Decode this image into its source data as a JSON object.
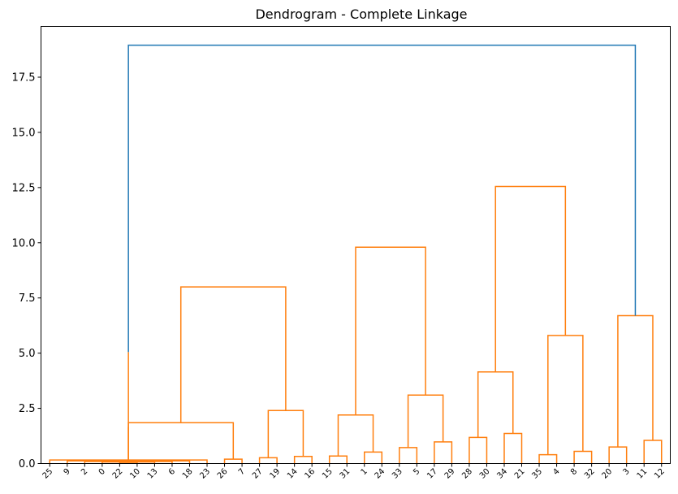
{
  "chart_data": {
    "type": "dendrogram",
    "title": "Dendrogram - Complete Linkage",
    "xlabel": "",
    "ylabel": "",
    "ylim": [
      0,
      19.8
    ],
    "yticks": [
      "0.0",
      "2.5",
      "5.0",
      "7.5",
      "10.0",
      "12.5",
      "15.0",
      "17.5"
    ],
    "ytick_values": [
      0,
      2.5,
      5,
      7.5,
      10,
      12.5,
      15,
      17.5
    ],
    "leaves": [
      "25",
      "9",
      "2",
      "0",
      "22",
      "10",
      "13",
      "6",
      "18",
      "23",
      "26",
      "7",
      "27",
      "19",
      "14",
      "16",
      "15",
      "31",
      "1",
      "24",
      "33",
      "5",
      "17",
      "29",
      "28",
      "30",
      "34",
      "21",
      "35",
      "4",
      "8",
      "32",
      "20",
      "3",
      "11",
      "12"
    ],
    "colors": {
      "above_threshold": "#1f77b4",
      "cluster": "#ff7f0e"
    },
    "links": [
      {
        "left": 4,
        "right": 5,
        "height": 0.05
      },
      {
        "left": 3,
        "right": 6,
        "height": 0.07
      },
      {
        "left": 2,
        "right": 7,
        "height": 0.09
      },
      {
        "left": 1,
        "right": 8,
        "height": 0.12
      },
      {
        "left": 0,
        "right": 9,
        "height": 0.16
      },
      {
        "left": 10,
        "right": 11,
        "height": 0.2
      },
      {
        "left": 12,
        "right": 13,
        "height": 0.26
      },
      {
        "left": 14,
        "right": 15,
        "height": 0.32
      },
      {
        "left": 16,
        "right": 17,
        "height": 0.34
      },
      {
        "left": 18,
        "right": 19,
        "height": 0.52
      },
      {
        "left": 20,
        "right": 21,
        "height": 0.72
      },
      {
        "left": 22,
        "right": 23,
        "height": 0.98
      },
      {
        "left": 24,
        "right": 25,
        "height": 1.18
      },
      {
        "left": 26,
        "right": 27,
        "height": 1.36
      },
      {
        "left": 28,
        "right": 29,
        "height": 0.4
      },
      {
        "left": 30,
        "right": 31,
        "height": 0.55
      },
      {
        "left": 32,
        "right": 33,
        "height": 0.75
      },
      {
        "left": 34,
        "right": 35,
        "height": 1.05
      },
      {
        "left": 36,
        "right": 37,
        "height": 1.55
      },
      {
        "left": 38,
        "right": 39,
        "height": 1.65
      },
      {
        "left": 40,
        "right": 41,
        "height": 1.85
      },
      {
        "left": 42,
        "right": 43,
        "height": 2.4
      },
      {
        "left": 44,
        "right": 45,
        "height": 2.2
      },
      {
        "left": 46,
        "right": 47,
        "height": 3.1
      },
      {
        "left": 48,
        "right": 49,
        "height": 4.15
      },
      {
        "left": 50,
        "right": 51,
        "height": 5.8
      },
      {
        "left": 52,
        "right": 53,
        "height": 6.7
      },
      {
        "left": 54,
        "right": 55,
        "height": 5.05
      },
      {
        "left": 56,
        "right": 57,
        "height": 8.0
      },
      {
        "left": 58,
        "right": 59,
        "height": 9.8
      },
      {
        "left": 60,
        "right": 61,
        "height": 12.55
      },
      {
        "left": 62,
        "right": 63,
        "height": 18.95,
        "color": "above_threshold"
      }
    ]
  }
}
